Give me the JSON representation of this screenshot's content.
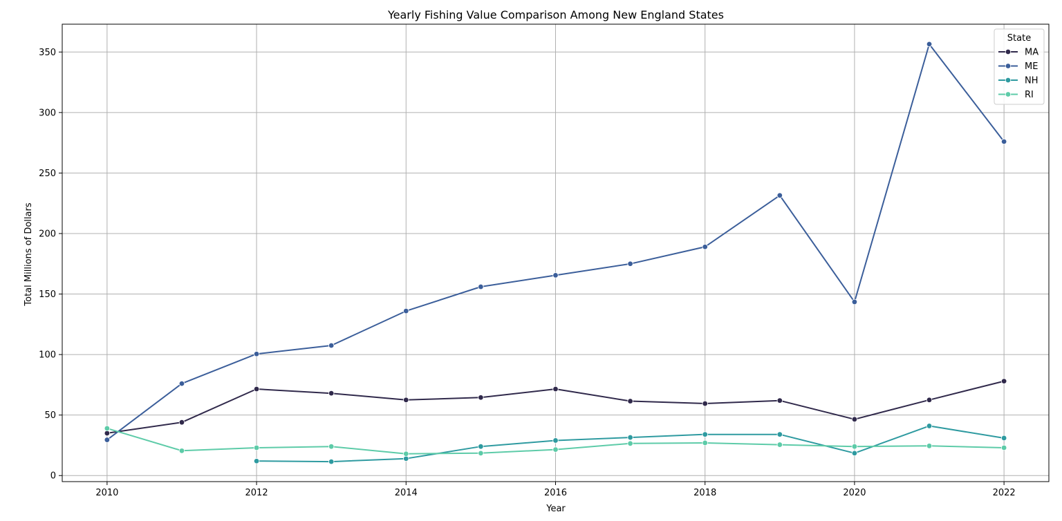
{
  "chart_data": {
    "type": "line",
    "title": "Yearly Fishing Value Comparison Among New England States",
    "xlabel": "Year",
    "ylabel": "Total Millions of Dollars",
    "xlim": [
      2009.4,
      2022.6
    ],
    "ylim": [
      -5,
      373
    ],
    "x_ticks": [
      2010,
      2012,
      2014,
      2016,
      2018,
      2020,
      2022
    ],
    "y_ticks": [
      0,
      50,
      100,
      150,
      200,
      250,
      300,
      350
    ],
    "grid": true,
    "legend": {
      "title": "State",
      "placement": "top-right"
    },
    "x": [
      2010,
      2011,
      2012,
      2013,
      2014,
      2015,
      2016,
      2017,
      2018,
      2019,
      2020,
      2021,
      2022
    ],
    "series": [
      {
        "name": "MA",
        "color": "#30294b",
        "values": [
          35,
          44,
          71.5,
          68,
          62.5,
          64.5,
          71.5,
          61.5,
          59.5,
          62,
          46.5,
          62.5,
          78
        ]
      },
      {
        "name": "ME",
        "color": "#3b5e9a",
        "values": [
          29.5,
          76,
          100.5,
          107.5,
          136,
          156,
          165.5,
          175,
          189,
          231.5,
          143.5,
          356.5,
          276
        ]
      },
      {
        "name": "NH",
        "color": "#2e9aa0",
        "values": [
          null,
          null,
          12,
          11.5,
          14,
          24,
          29,
          31.5,
          34,
          34,
          18.5,
          41,
          31
        ]
      },
      {
        "name": "RI",
        "color": "#5dcba8",
        "values": [
          39,
          20.5,
          23,
          24,
          18,
          18.5,
          21.5,
          26.5,
          27,
          25.5,
          24,
          24.5,
          23
        ]
      }
    ]
  }
}
